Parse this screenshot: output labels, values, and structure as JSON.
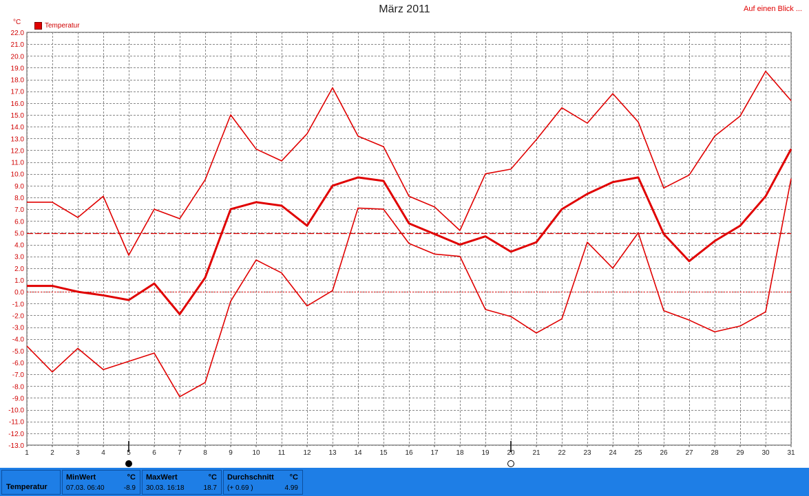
{
  "header": {
    "title": "März 2011",
    "overview_link": "Auf einen Blick ..."
  },
  "chart_data": {
    "type": "line",
    "title": "März 2011",
    "ylabel": "°C",
    "ylim": [
      -13,
      22
    ],
    "yticks": [
      "22.0",
      "21.0",
      "20.0",
      "19.0",
      "18.0",
      "17.0",
      "16.0",
      "15.0",
      "14.0",
      "13.0",
      "12.0",
      "11.0",
      "10.0",
      "9.0",
      "8.0",
      "7.0",
      "6.0",
      "5.0",
      "4.0",
      "3.0",
      "2.0",
      "1.0",
      "0.0",
      "-1.0",
      "-2.0",
      "-3.0",
      "-4.0",
      "-5.0",
      "-6.0",
      "-7.0",
      "-8.0",
      "-9.0",
      "-10.0",
      "-11.0",
      "-12.0",
      "-13.0"
    ],
    "x": [
      "1",
      "2",
      "3",
      "4",
      "5",
      "6",
      "7",
      "8",
      "9",
      "10",
      "11",
      "12",
      "13",
      "14",
      "15",
      "16",
      "17",
      "18",
      "19",
      "20",
      "21",
      "22",
      "23",
      "24",
      "25",
      "26",
      "27",
      "28",
      "29",
      "30",
      "31"
    ],
    "legend": "Temperatur",
    "series": [
      {
        "name": "Temperatur",
        "role": "max",
        "color": "#e00000",
        "values": [
          7.6,
          7.6,
          6.3,
          8.1,
          3.1,
          7.0,
          6.2,
          9.5,
          15.0,
          12.1,
          11.1,
          13.4,
          17.3,
          13.2,
          12.3,
          8.1,
          7.2,
          5.2,
          10.0,
          10.4,
          12.9,
          15.6,
          14.3,
          16.8,
          14.4,
          8.8,
          9.9,
          13.2,
          14.9,
          18.7,
          16.2
        ]
      },
      {
        "name": "Temperatur",
        "role": "avg",
        "color": "#e00000",
        "values": [
          0.5,
          0.5,
          0.0,
          -0.3,
          -0.7,
          0.7,
          -1.9,
          1.2,
          7.0,
          7.6,
          7.3,
          5.6,
          9.0,
          9.7,
          9.4,
          5.8,
          4.9,
          4.0,
          4.7,
          3.4,
          4.2,
          7.0,
          8.3,
          9.3,
          9.7,
          4.9,
          2.6,
          4.3,
          5.6,
          8.1,
          12.1
        ]
      },
      {
        "name": "Temperatur",
        "role": "min",
        "color": "#e00000",
        "values": [
          -4.6,
          -6.8,
          -4.8,
          -6.6,
          -5.9,
          -5.2,
          -8.9,
          -7.7,
          -0.8,
          2.7,
          1.6,
          -1.2,
          0.1,
          7.1,
          7.0,
          4.1,
          3.2,
          3.0,
          -1.5,
          -2.1,
          -3.5,
          -2.3,
          4.2,
          2.0,
          5.0,
          -1.6,
          -2.4,
          -3.4,
          -2.9,
          -1.7,
          9.6
        ]
      }
    ],
    "reference_lines": [
      {
        "label": "Durchschnitt",
        "value": 4.99,
        "style": "dashed-heavy"
      },
      {
        "label": "0",
        "value": 0,
        "style": "dotted"
      }
    ],
    "moon_phases": [
      {
        "day": 5,
        "phase": "new-moon"
      },
      {
        "day": 20,
        "phase": "full-moon"
      }
    ],
    "grid": true
  },
  "stats": {
    "label": "Temperatur",
    "min": {
      "head": "MinWert",
      "unit": "°C",
      "time": "07.03.  06:40",
      "value": "-8.9"
    },
    "max": {
      "head": "MaxWert",
      "unit": "°C",
      "time": "30.03.  16:18",
      "value": "18.7"
    },
    "avg": {
      "head": "Durchschnitt",
      "unit": "°C",
      "delta": "(+ 0.69 )",
      "value": "4.99"
    }
  },
  "colors": {
    "series": "#e00000",
    "grid": "#888888",
    "axis_text": "#d00000",
    "footer_bg": "#1e7ee6"
  }
}
